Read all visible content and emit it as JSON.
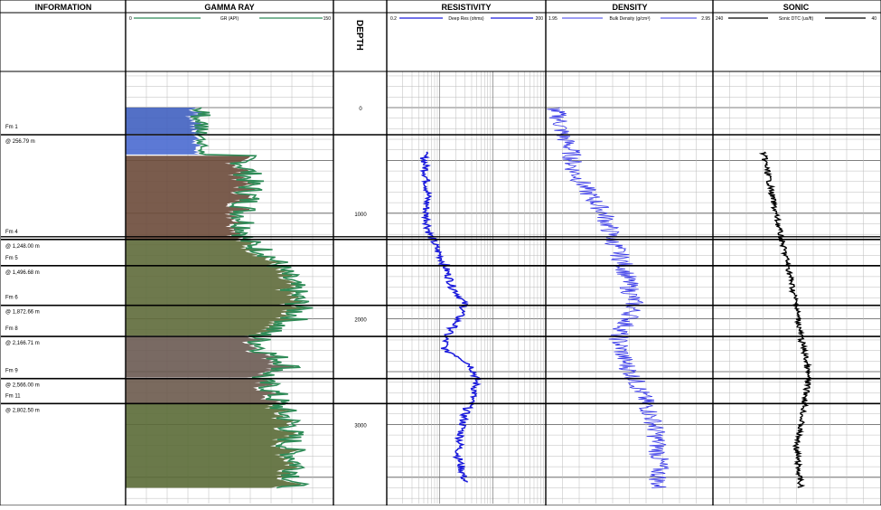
{
  "tracks": {
    "information": "INFORMATION",
    "gamma": "GAMMA RAY",
    "depth": "DEPTH",
    "resistivity": "RESISTIVITY",
    "density": "DENSITY",
    "sonic": "SONIC"
  },
  "scales": {
    "gamma": {
      "min": "0",
      "label": "GR (API)",
      "max": "150",
      "color": "#2e8b57"
    },
    "resistivity": {
      "min": "0.2",
      "label": "Deep Res (ohms)",
      "max": "200",
      "color": "#1a1adc"
    },
    "density": {
      "min": "1.95",
      "label": "Bulk Density (g/cm³)",
      "max": "2.95",
      "color": "#3b3be8"
    },
    "sonic": {
      "min": "240",
      "label": "Sonic DTC (us/ft)",
      "max": "40",
      "color": "#000000"
    }
  },
  "depth_ticks": [
    "0",
    "1000",
    "2000",
    "3000"
  ],
  "formations": [
    {
      "name": "Fm 1",
      "top": "@ 256.79 m",
      "depth": 256.79
    },
    {
      "name": "Fm 4",
      "top": "@ 1,248.00 m",
      "depth": 1248.0
    },
    {
      "name": "Fm 5",
      "top": "@ 1,496.68 m",
      "depth": 1496.68
    },
    {
      "name": "Fm 6",
      "top": "@ 1,872.66 m",
      "depth": 1872.66
    },
    {
      "name": "Fm 8",
      "top": "@ 2,166.71 m",
      "depth": 2166.71
    },
    {
      "name": "Fm 9",
      "top": "@ 2,566.00 m",
      "depth": 2566.0
    },
    {
      "name": "Fm 11",
      "top": "@ 2,802.50 m",
      "depth": 2802.5
    }
  ],
  "chart_data": {
    "type": "line",
    "y_axis": "depth (m)",
    "y_range": [
      -340,
      3700
    ],
    "series": [
      {
        "name": "GR (API)",
        "track": "gamma",
        "range": [
          0,
          150
        ],
        "x": [
          0,
          150
        ],
        "points": [
          [
            0,
            55
          ],
          [
            150,
            57
          ],
          [
            256,
            58
          ],
          [
            260,
            70
          ],
          [
            400,
            82
          ],
          [
            600,
            88
          ],
          [
            800,
            90
          ],
          [
            1000,
            85
          ],
          [
            1200,
            88
          ],
          [
            1248,
            85
          ],
          [
            1400,
            105
          ],
          [
            1496,
            110
          ],
          [
            1700,
            120
          ],
          [
            1872,
            125
          ],
          [
            2000,
            122
          ],
          [
            2166,
            95
          ],
          [
            2300,
            100
          ],
          [
            2450,
            120
          ],
          [
            2566,
            95
          ],
          [
            2650,
            105
          ],
          [
            2802,
            110
          ],
          [
            3000,
            120
          ],
          [
            3200,
            118
          ],
          [
            3400,
            125
          ],
          [
            3600,
            120
          ]
        ]
      },
      {
        "name": "Deep Res (ohms)",
        "track": "resistivity",
        "range": [
          0.2,
          200
        ],
        "points": [
          [
            420,
            1.0
          ],
          [
            600,
            1.1
          ],
          [
            800,
            1.2
          ],
          [
            1000,
            1.1
          ],
          [
            1200,
            1.3
          ],
          [
            1350,
            1.8
          ],
          [
            1496,
            2.5
          ],
          [
            1700,
            3.5
          ],
          [
            1872,
            6.0
          ],
          [
            2000,
            4.5
          ],
          [
            2166,
            2.6
          ],
          [
            2300,
            2.5
          ],
          [
            2450,
            8.0
          ],
          [
            2566,
            10.0
          ],
          [
            2700,
            9.0
          ],
          [
            2900,
            6.0
          ],
          [
            3100,
            5.0
          ],
          [
            3300,
            4.5
          ],
          [
            3550,
            6.0
          ]
        ]
      },
      {
        "name": "Bulk Density (g/cm³)",
        "track": "density",
        "range": [
          1.95,
          2.95
        ],
        "points": [
          [
            0,
            2.0
          ],
          [
            100,
            2.03
          ],
          [
            256,
            2.05
          ],
          [
            400,
            2.1
          ],
          [
            600,
            2.12
          ],
          [
            800,
            2.2
          ],
          [
            1000,
            2.3
          ],
          [
            1248,
            2.35
          ],
          [
            1496,
            2.42
          ],
          [
            1700,
            2.45
          ],
          [
            1872,
            2.48
          ],
          [
            2000,
            2.45
          ],
          [
            2166,
            2.38
          ],
          [
            2400,
            2.42
          ],
          [
            2566,
            2.48
          ],
          [
            2800,
            2.55
          ],
          [
            3000,
            2.6
          ],
          [
            3200,
            2.62
          ],
          [
            3400,
            2.63
          ],
          [
            3600,
            2.62
          ]
        ]
      },
      {
        "name": "Sonic DTC (us/ft)",
        "track": "sonic",
        "range": [
          240,
          40
        ],
        "points": [
          [
            420,
            180
          ],
          [
            600,
            175
          ],
          [
            800,
            170
          ],
          [
            1000,
            165
          ],
          [
            1248,
            158
          ],
          [
            1496,
            150
          ],
          [
            1700,
            145
          ],
          [
            1872,
            140
          ],
          [
            2000,
            138
          ],
          [
            2166,
            135
          ],
          [
            2400,
            128
          ],
          [
            2566,
            126
          ],
          [
            2800,
            130
          ],
          [
            3000,
            135
          ],
          [
            3200,
            140
          ],
          [
            3400,
            138
          ],
          [
            3600,
            135
          ]
        ]
      }
    ]
  }
}
